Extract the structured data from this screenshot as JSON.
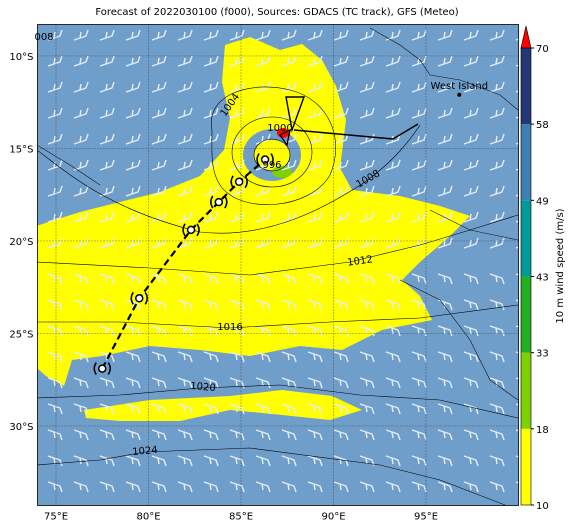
{
  "map": {
    "title": "Forecast of 2022030100 (f000), Sources: GDACS (TC track), GFS (Meteo)",
    "xlim": [
      74,
      100
    ],
    "ylim": [
      -34.3,
      -8.3
    ],
    "xticks": [
      {
        "value": 75,
        "label": "75°E"
      },
      {
        "value": 80,
        "label": "80°E"
      },
      {
        "value": 85,
        "label": "85°E"
      },
      {
        "value": 90,
        "label": "90°E"
      },
      {
        "value": 95,
        "label": "95°E"
      }
    ],
    "yticks": [
      {
        "value": -10,
        "label": "10°S"
      },
      {
        "value": -15,
        "label": "15°S"
      },
      {
        "value": -20,
        "label": "20°S"
      },
      {
        "value": -25,
        "label": "25°S"
      },
      {
        "value": -30,
        "label": "30°S"
      }
    ],
    "isobar_labels": [
      "008",
      "1004",
      "1000",
      "996",
      "1008",
      "1012",
      "1016",
      "1020",
      "1024"
    ],
    "track": {
      "lon": [
        77.5,
        79.5,
        82.3,
        83.8,
        84.9,
        86.3
      ],
      "lat": [
        -26.9,
        -23.1,
        -19.4,
        -17.9,
        -16.8,
        -15.6
      ]
    },
    "places": [
      {
        "name": "West Island",
        "lon": 96.8,
        "lat": -12.1
      }
    ],
    "colorbar": {
      "label": "10 m wind speed (m/s)",
      "ticks": [
        10,
        18,
        33,
        43,
        49,
        58,
        70
      ],
      "colors": [
        "#ffff00",
        "#7fd000",
        "#22b022",
        "#009a9a",
        "#3d7fb4",
        "#243878"
      ],
      "over_color": "#ff0000"
    }
  }
}
